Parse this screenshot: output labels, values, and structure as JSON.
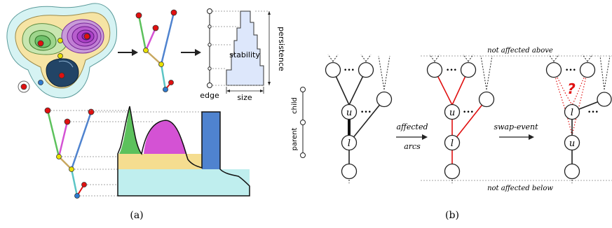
{
  "panel_a": {
    "caption": "(a)",
    "bar_label": "stability",
    "edge_label": "edge",
    "size_label": "size",
    "persistence_label": "persistence"
  },
  "panel_b": {
    "caption": "(b)",
    "parent_label": "parent",
    "child_label": "child",
    "u_label": "u",
    "l_label": "l",
    "affected_label": "affected",
    "arcs_label": "arcs",
    "swap_label": "swap-event",
    "not_above": "not affected above",
    "not_below": "not affected below",
    "question_mark": "?",
    "dots": "•••"
  },
  "colors": {
    "green": "#5cc15c",
    "magenta": "#d452d4",
    "blue": "#4f83cf",
    "yellow": "#f5dd90",
    "teal": "#bfeeee",
    "red": "#e01010",
    "node_yellow": "#e8e000",
    "bar_fill": "#dde7fb"
  }
}
